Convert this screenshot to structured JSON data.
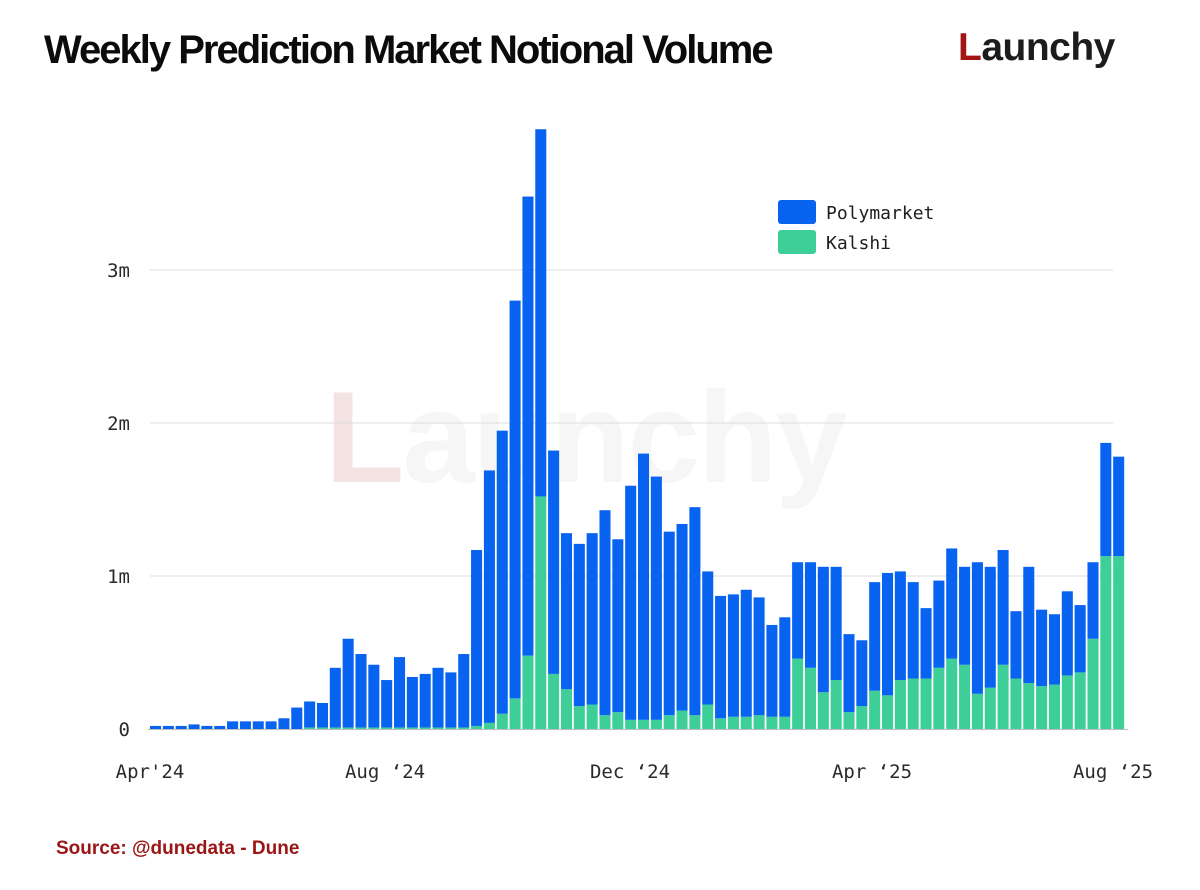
{
  "header": {
    "title": "Weekly Prediction Market Notional Volume",
    "brand_first": "L",
    "brand_rest": "aunchy"
  },
  "watermark": {
    "first": "L",
    "rest": "aunchy"
  },
  "colors": {
    "polymarket": "#0763f0",
    "kalshi": "#3ecf98",
    "grid": "#dcdcdc",
    "axis": "#bdbdbd",
    "source": "#9c1515",
    "brand": "#a31414"
  },
  "footer": {
    "source": "Source: @dunedata - Dune"
  },
  "chart_data": {
    "type": "bar",
    "stacked": true,
    "title": "Weekly Prediction Market Notional Volume",
    "xlabel": "",
    "ylabel": "",
    "ylim": [
      0,
      4000000
    ],
    "grid": true,
    "legend_position": "top-right",
    "y_ticks": [
      {
        "value": 0,
        "label": "0"
      },
      {
        "value": 1000000,
        "label": "1m"
      },
      {
        "value": 2000000,
        "label": "2m"
      },
      {
        "value": 3000000,
        "label": "3m"
      }
    ],
    "x_ticks": [
      {
        "index": 0,
        "label": "Apr'24"
      },
      {
        "index": 18,
        "label": "Aug ‘24"
      },
      {
        "index": 37,
        "label": "Dec ‘24"
      },
      {
        "index": 56,
        "label": "Apr ‘25"
      },
      {
        "index": 75,
        "label": "Aug ‘25"
      }
    ],
    "series": [
      {
        "name": "Polymarket",
        "values": [
          20000,
          20000,
          20000,
          30000,
          20000,
          20000,
          50000,
          50000,
          50000,
          50000,
          70000,
          140000,
          170000,
          160000,
          390000,
          580000,
          480000,
          410000,
          310000,
          460000,
          330000,
          350000,
          390000,
          360000,
          480000,
          1150000,
          1650000,
          1850000,
          2600000,
          3000000,
          2400000,
          1460000,
          1020000,
          1060000,
          1120000,
          1340000,
          1130000,
          1530000,
          1740000,
          1590000,
          1200000,
          1220000,
          1360000,
          870000,
          800000,
          800000,
          830000,
          770000,
          600000,
          650000,
          630000,
          690000,
          820000,
          740000,
          510000,
          430000,
          710000,
          800000,
          710000,
          630000,
          460000,
          570000,
          720000,
          640000,
          860000,
          790000,
          750000,
          440000,
          760000,
          500000,
          460000,
          550000,
          440000,
          500000,
          740000,
          650000
        ],
        "kalshi_series_note": ""
      },
      {
        "name": "Kalshi",
        "values": [
          0,
          0,
          0,
          0,
          0,
          0,
          0,
          0,
          0,
          0,
          0,
          0,
          10000,
          10000,
          10000,
          10000,
          10000,
          10000,
          10000,
          10000,
          10000,
          10000,
          10000,
          10000,
          10000,
          20000,
          40000,
          100000,
          200000,
          480000,
          1520000,
          360000,
          260000,
          150000,
          160000,
          90000,
          110000,
          60000,
          60000,
          60000,
          90000,
          120000,
          90000,
          160000,
          70000,
          80000,
          80000,
          90000,
          80000,
          80000,
          460000,
          400000,
          240000,
          320000,
          110000,
          150000,
          250000,
          220000,
          320000,
          330000,
          330000,
          400000,
          460000,
          420000,
          230000,
          270000,
          420000,
          330000,
          300000,
          280000,
          290000,
          350000,
          370000,
          590000,
          1130000,
          1130000
        ]
      }
    ]
  }
}
